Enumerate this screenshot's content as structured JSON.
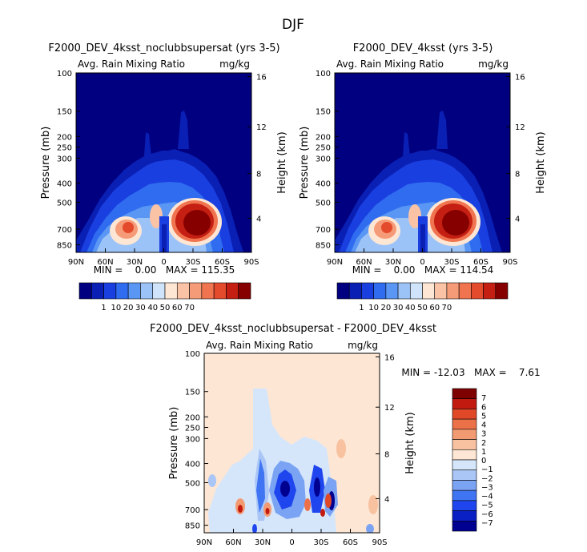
{
  "page": {
    "title": "DJF"
  },
  "colors": {
    "abs_scale": [
      "#000080",
      "#0a1fb4",
      "#1a3fe0",
      "#2f6cf0",
      "#5a96f3",
      "#9cc3f8",
      "#cfe3fb",
      "#fde6d4",
      "#fac3a6",
      "#f69b78",
      "#f0744f",
      "#e44a2c",
      "#c41f12",
      "#860000"
    ],
    "diff_scale": [
      "#000090",
      "#0a20c4",
      "#1f46ee",
      "#3f74f2",
      "#7ba3f4",
      "#aac6f7",
      "#d5e6fb",
      "#fde6d4",
      "#f8c2a0",
      "#f29a72",
      "#ec7048",
      "#e04828",
      "#c31a10",
      "#7f0000"
    ]
  },
  "chart_data": [
    {
      "id": "left",
      "type": "heatmap",
      "title": "F2000_DEV_4ksst_noclubbsupersat (yrs 3-5)",
      "subtitle_left": "Avg. Rain Mixing Ratio",
      "subtitle_right": "mg/kg",
      "ylabel": "Pressure (mb)",
      "y2label": "Height (km)",
      "x_ticks": [
        "90N",
        "60N",
        "30N",
        "0",
        "30S",
        "60S",
        "90S"
      ],
      "y_ticks": [
        "100",
        "150",
        "200",
        "250",
        "300",
        "400",
        "500",
        "700",
        "850"
      ],
      "y2_ticks": [
        "16",
        "12",
        "8",
        "4"
      ],
      "stats": "MIN =    0.00   MAX = 115.35",
      "colorbar_labels": [
        "1",
        "10",
        "20",
        "30",
        "40",
        "50",
        "60",
        "70"
      ]
    },
    {
      "id": "right",
      "type": "heatmap",
      "title": "F2000_DEV_4ksst (yrs 3-5)",
      "subtitle_left": "Avg. Rain Mixing Ratio",
      "subtitle_right": "mg/kg",
      "ylabel": "Pressure (mb)",
      "y2label": "Height (km)",
      "x_ticks": [
        "90N",
        "60N",
        "30N",
        "0",
        "30S",
        "60S",
        "90S"
      ],
      "y_ticks": [
        "100",
        "150",
        "200",
        "250",
        "300",
        "400",
        "500",
        "700",
        "850"
      ],
      "y2_ticks": [
        "16",
        "12",
        "8",
        "4"
      ],
      "stats": "MIN =    0.00   MAX = 114.54",
      "colorbar_labels": [
        "1",
        "10",
        "20",
        "30",
        "40",
        "50",
        "60",
        "70"
      ]
    },
    {
      "id": "diff",
      "type": "heatmap",
      "title": "F2000_DEV_4ksst_noclubbsupersat - F2000_DEV_4ksst",
      "subtitle_left": "Avg. Rain Mixing Ratio",
      "subtitle_right": "mg/kg",
      "ylabel": "Pressure (mb)",
      "y2label": "Height (km)",
      "x_ticks": [
        "90N",
        "60N",
        "30N",
        "0",
        "30S",
        "60S",
        "90S"
      ],
      "y_ticks": [
        "100",
        "150",
        "200",
        "250",
        "300",
        "400",
        "500",
        "700",
        "850"
      ],
      "y2_ticks": [
        "16",
        "12",
        "8",
        "4"
      ],
      "stats": "MIN = -12.03   MAX =    7.61",
      "colorbar_labels": [
        "7",
        "6",
        "5",
        "4",
        "3",
        "2",
        "1",
        "0",
        "−1",
        "−2",
        "−3",
        "−4",
        "−5",
        "−6",
        "−7"
      ]
    }
  ]
}
